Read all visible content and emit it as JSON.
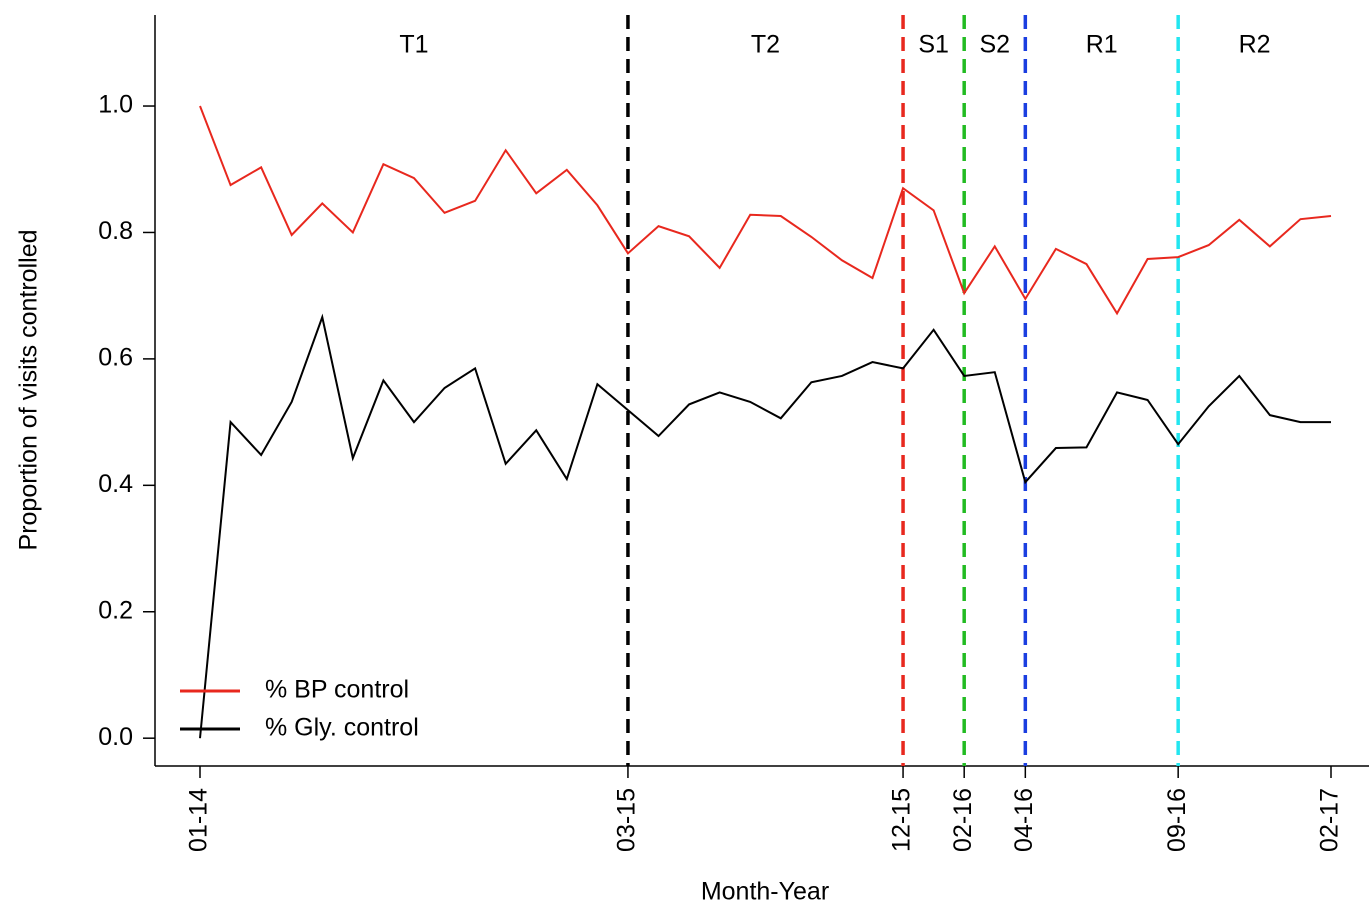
{
  "chart_data": {
    "type": "line",
    "x_label": "Month-Year",
    "y_label": "Proportion of visits controlled",
    "categories": [
      "01-14",
      null,
      null,
      null,
      null,
      null,
      null,
      null,
      null,
      null,
      null,
      null,
      null,
      null,
      "03-15",
      null,
      null,
      null,
      null,
      null,
      null,
      null,
      null,
      "12-15",
      null,
      "02-16",
      null,
      "04-16",
      null,
      null,
      null,
      null,
      "09-16",
      null,
      null,
      null,
      null,
      "02-17"
    ],
    "series": [
      {
        "name": "% BP control",
        "color": "#e8281e",
        "values": [
          1.0,
          0.875,
          0.903,
          0.796,
          0.846,
          0.8,
          0.908,
          0.886,
          0.831,
          0.85,
          0.93,
          0.862,
          0.899,
          0.843,
          0.767,
          0.81,
          0.794,
          0.744,
          0.828,
          0.826,
          0.793,
          0.756,
          0.728,
          0.87,
          0.835,
          0.704,
          0.778,
          0.695,
          0.774,
          0.75,
          0.672,
          0.758,
          0.761,
          0.78,
          0.82,
          0.778,
          0.821,
          0.826
        ]
      },
      {
        "name": "% Gly. control",
        "color": "#000000",
        "values": [
          0.0,
          0.5,
          0.448,
          0.532,
          0.666,
          0.443,
          0.566,
          0.5,
          0.554,
          0.585,
          0.434,
          0.487,
          0.41,
          0.56,
          0.519,
          0.478,
          0.528,
          0.547,
          0.532,
          0.506,
          0.563,
          0.573,
          0.595,
          0.585,
          0.646,
          0.573,
          0.579,
          0.405,
          0.459,
          0.46,
          0.547,
          0.535,
          0.465,
          0.525,
          0.573,
          0.511,
          0.5,
          0.5
        ]
      }
    ],
    "dividers": [
      {
        "category": "03-15",
        "color": "#000000"
      },
      {
        "category": "12-15",
        "color": "#e8281e"
      },
      {
        "category": "02-16",
        "color": "#22bb22"
      },
      {
        "category": "04-16",
        "color": "#1a3ee0"
      },
      {
        "category": "09-16",
        "color": "#22e6f0"
      }
    ],
    "periods": [
      "T1",
      "T2",
      "S1",
      "S2",
      "R1",
      "R2"
    ],
    "ylim": [
      -0.044,
      1.144
    ],
    "yticks": [
      {
        "value": 0,
        "label": "0.0"
      },
      0.2,
      0.4,
      0.6,
      0.8,
      {
        "value": 1,
        "label": "1.0"
      }
    ],
    "legend": "bottom-left"
  }
}
